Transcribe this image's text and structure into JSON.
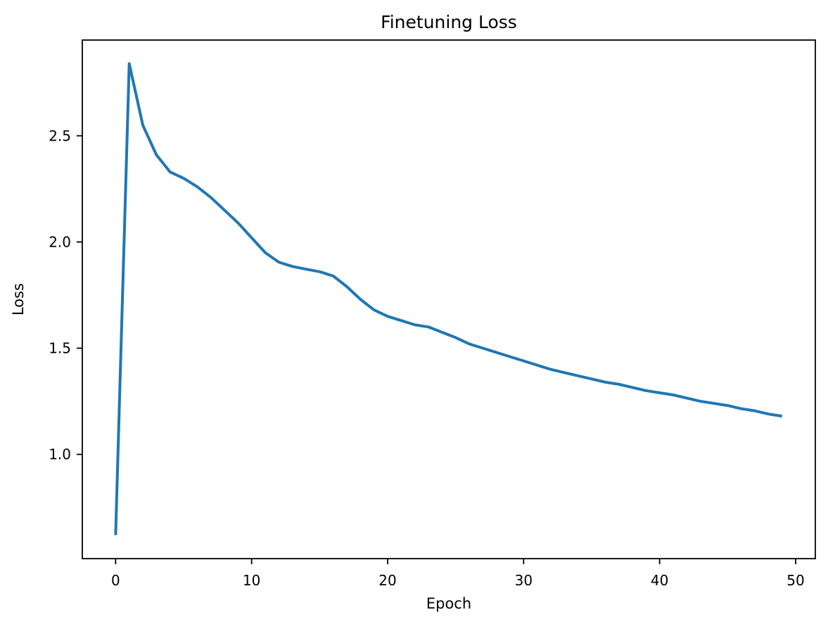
{
  "figure": {
    "background": "#ffffff",
    "text_color": "#000000"
  },
  "chart_data": {
    "type": "line",
    "title": "Finetuning Loss",
    "xlabel": "Epoch",
    "ylabel": "Loss",
    "grid": false,
    "legend_position": "none",
    "xlim": [
      -2.45,
      51.45
    ],
    "ylim": [
      0.509,
      2.951
    ],
    "x_tick_labels": [
      "0",
      "10",
      "20",
      "30",
      "40",
      "50"
    ],
    "y_tick_labels": [
      "1.0",
      "1.5",
      "2.0",
      "2.5"
    ],
    "x": [
      0,
      1,
      2,
      3,
      4,
      5,
      6,
      7,
      8,
      9,
      10,
      11,
      12,
      13,
      14,
      15,
      16,
      17,
      18,
      19,
      20,
      21,
      22,
      23,
      24,
      25,
      26,
      27,
      28,
      29,
      30,
      31,
      32,
      33,
      34,
      35,
      36,
      37,
      38,
      39,
      40,
      41,
      42,
      43,
      44,
      45,
      46,
      47,
      48,
      49
    ],
    "series": [
      {
        "name": "finetuning loss",
        "color": "#1f77b4",
        "values": [
          0.62,
          2.84,
          2.55,
          2.41,
          2.33,
          2.3,
          2.26,
          2.21,
          2.15,
          2.09,
          2.02,
          1.95,
          1.905,
          1.885,
          1.872,
          1.86,
          1.84,
          1.79,
          1.73,
          1.68,
          1.65,
          1.63,
          1.61,
          1.6,
          1.575,
          1.55,
          1.52,
          1.5,
          1.48,
          1.46,
          1.44,
          1.42,
          1.4,
          1.385,
          1.37,
          1.355,
          1.34,
          1.33,
          1.315,
          1.3,
          1.29,
          1.28,
          1.265,
          1.25,
          1.24,
          1.23,
          1.215,
          1.205,
          1.19,
          1.18
        ]
      }
    ]
  }
}
